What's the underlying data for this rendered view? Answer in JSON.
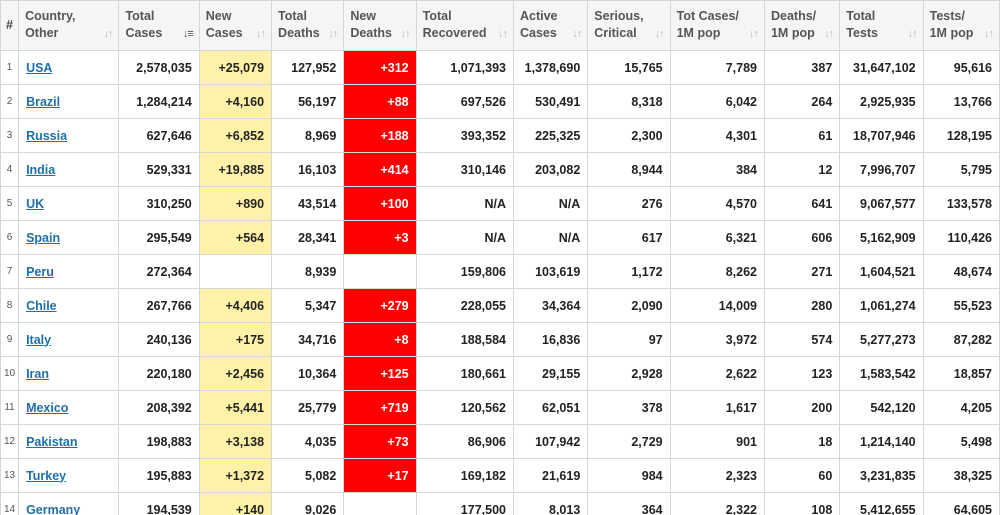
{
  "colors": {
    "new_cases_bg": "#fff1a8",
    "new_deaths_bg": "#ff0000",
    "link": "#1f6fa8"
  },
  "headers": [
    {
      "key": "num",
      "line1": "#",
      "line2": ""
    },
    {
      "key": "country",
      "line1": "Country,",
      "line2": "Other"
    },
    {
      "key": "total_cases",
      "line1": "Total",
      "line2": "Cases"
    },
    {
      "key": "new_cases",
      "line1": "New",
      "line2": "Cases"
    },
    {
      "key": "total_deaths",
      "line1": "Total",
      "line2": "Deaths"
    },
    {
      "key": "new_deaths",
      "line1": "New",
      "line2": "Deaths"
    },
    {
      "key": "total_recovered",
      "line1": "Total",
      "line2": "Recovered"
    },
    {
      "key": "active_cases",
      "line1": "Active",
      "line2": "Cases"
    },
    {
      "key": "serious_critical",
      "line1": "Serious,",
      "line2": "Critical"
    },
    {
      "key": "tot_cases_1m",
      "line1": "Tot Cases/",
      "line2": "1M pop"
    },
    {
      "key": "deaths_1m",
      "line1": "Deaths/",
      "line2": "1M pop"
    },
    {
      "key": "total_tests",
      "line1": "Total",
      "line2": "Tests"
    },
    {
      "key": "tests_1m",
      "line1": "Tests/",
      "line2": "1M pop"
    }
  ],
  "sort": {
    "active_column": "total_cases",
    "direction": "descending"
  },
  "rows": [
    {
      "num": "1",
      "country": "USA",
      "total_cases": "2,578,035",
      "new_cases": "+25,079",
      "total_deaths": "127,952",
      "new_deaths": "+312",
      "total_recovered": "1,071,393",
      "active_cases": "1,378,690",
      "serious_critical": "15,765",
      "tot_cases_1m": "7,789",
      "deaths_1m": "387",
      "total_tests": "31,647,102",
      "tests_1m": "95,616"
    },
    {
      "num": "2",
      "country": "Brazil",
      "total_cases": "1,284,214",
      "new_cases": "+4,160",
      "total_deaths": "56,197",
      "new_deaths": "+88",
      "total_recovered": "697,526",
      "active_cases": "530,491",
      "serious_critical": "8,318",
      "tot_cases_1m": "6,042",
      "deaths_1m": "264",
      "total_tests": "2,925,935",
      "tests_1m": "13,766"
    },
    {
      "num": "3",
      "country": "Russia",
      "total_cases": "627,646",
      "new_cases": "+6,852",
      "total_deaths": "8,969",
      "new_deaths": "+188",
      "total_recovered": "393,352",
      "active_cases": "225,325",
      "serious_critical": "2,300",
      "tot_cases_1m": "4,301",
      "deaths_1m": "61",
      "total_tests": "18,707,946",
      "tests_1m": "128,195"
    },
    {
      "num": "4",
      "country": "India",
      "total_cases": "529,331",
      "new_cases": "+19,885",
      "total_deaths": "16,103",
      "new_deaths": "+414",
      "total_recovered": "310,146",
      "active_cases": "203,082",
      "serious_critical": "8,944",
      "tot_cases_1m": "384",
      "deaths_1m": "12",
      "total_tests": "7,996,707",
      "tests_1m": "5,795"
    },
    {
      "num": "5",
      "country": "UK",
      "total_cases": "310,250",
      "new_cases": "+890",
      "total_deaths": "43,514",
      "new_deaths": "+100",
      "total_recovered": "N/A",
      "active_cases": "N/A",
      "serious_critical": "276",
      "tot_cases_1m": "4,570",
      "deaths_1m": "641",
      "total_tests": "9,067,577",
      "tests_1m": "133,578"
    },
    {
      "num": "6",
      "country": "Spain",
      "total_cases": "295,549",
      "new_cases": "+564",
      "total_deaths": "28,341",
      "new_deaths": "+3",
      "total_recovered": "N/A",
      "active_cases": "N/A",
      "serious_critical": "617",
      "tot_cases_1m": "6,321",
      "deaths_1m": "606",
      "total_tests": "5,162,909",
      "tests_1m": "110,426"
    },
    {
      "num": "7",
      "country": "Peru",
      "total_cases": "272,364",
      "new_cases": "",
      "total_deaths": "8,939",
      "new_deaths": "",
      "total_recovered": "159,806",
      "active_cases": "103,619",
      "serious_critical": "1,172",
      "tot_cases_1m": "8,262",
      "deaths_1m": "271",
      "total_tests": "1,604,521",
      "tests_1m": "48,674"
    },
    {
      "num": "8",
      "country": "Chile",
      "total_cases": "267,766",
      "new_cases": "+4,406",
      "total_deaths": "5,347",
      "new_deaths": "+279",
      "total_recovered": "228,055",
      "active_cases": "34,364",
      "serious_critical": "2,090",
      "tot_cases_1m": "14,009",
      "deaths_1m": "280",
      "total_tests": "1,061,274",
      "tests_1m": "55,523"
    },
    {
      "num": "9",
      "country": "Italy",
      "total_cases": "240,136",
      "new_cases": "+175",
      "total_deaths": "34,716",
      "new_deaths": "+8",
      "total_recovered": "188,584",
      "active_cases": "16,836",
      "serious_critical": "97",
      "tot_cases_1m": "3,972",
      "deaths_1m": "574",
      "total_tests": "5,277,273",
      "tests_1m": "87,282"
    },
    {
      "num": "10",
      "country": "Iran",
      "total_cases": "220,180",
      "new_cases": "+2,456",
      "total_deaths": "10,364",
      "new_deaths": "+125",
      "total_recovered": "180,661",
      "active_cases": "29,155",
      "serious_critical": "2,928",
      "tot_cases_1m": "2,622",
      "deaths_1m": "123",
      "total_tests": "1,583,542",
      "tests_1m": "18,857"
    },
    {
      "num": "11",
      "country": "Mexico",
      "total_cases": "208,392",
      "new_cases": "+5,441",
      "total_deaths": "25,779",
      "new_deaths": "+719",
      "total_recovered": "120,562",
      "active_cases": "62,051",
      "serious_critical": "378",
      "tot_cases_1m": "1,617",
      "deaths_1m": "200",
      "total_tests": "542,120",
      "tests_1m": "4,205"
    },
    {
      "num": "12",
      "country": "Pakistan",
      "total_cases": "198,883",
      "new_cases": "+3,138",
      "total_deaths": "4,035",
      "new_deaths": "+73",
      "total_recovered": "86,906",
      "active_cases": "107,942",
      "serious_critical": "2,729",
      "tot_cases_1m": "901",
      "deaths_1m": "18",
      "total_tests": "1,214,140",
      "tests_1m": "5,498"
    },
    {
      "num": "13",
      "country": "Turkey",
      "total_cases": "195,883",
      "new_cases": "+1,372",
      "total_deaths": "5,082",
      "new_deaths": "+17",
      "total_recovered": "169,182",
      "active_cases": "21,619",
      "serious_critical": "984",
      "tot_cases_1m": "2,323",
      "deaths_1m": "60",
      "total_tests": "3,231,835",
      "tests_1m": "38,325"
    },
    {
      "num": "14",
      "country": "Germany",
      "total_cases": "194,539",
      "new_cases": "+140",
      "total_deaths": "9,026",
      "new_deaths": "",
      "total_recovered": "177,500",
      "active_cases": "8,013",
      "serious_critical": "364",
      "tot_cases_1m": "2,322",
      "deaths_1m": "108",
      "total_tests": "5,412,655",
      "tests_1m": "64,605"
    }
  ]
}
